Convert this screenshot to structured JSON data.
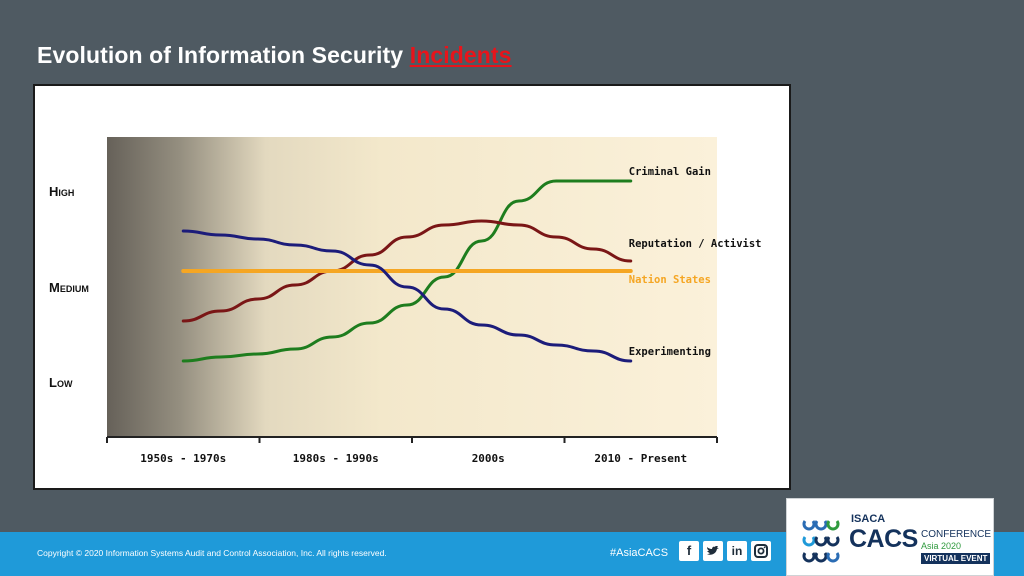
{
  "slide": {
    "title_main": "Evolution of Information Security",
    "title_highlight": "Incidents"
  },
  "chart_data": {
    "type": "line",
    "title": "",
    "xlabel": "",
    "ylabel": "",
    "categories": [
      "1950s - 1970s",
      "1980s - 1990s",
      "2000s",
      "2010 - Present"
    ],
    "y_levels": [
      "High",
      "Medium",
      "Low"
    ],
    "ylim": [
      0,
      10
    ],
    "grid": false,
    "x": [
      0,
      0.25,
      0.5,
      0.75,
      1.0,
      1.25,
      1.5,
      1.75,
      2.0,
      2.25,
      2.5,
      2.75,
      3.0
    ],
    "series": [
      {
        "name": "Criminal Gain",
        "color": "#1e7d1e",
        "values": [
          1.0,
          1.2,
          1.35,
          1.6,
          2.2,
          2.9,
          3.8,
          5.2,
          7.0,
          9.0,
          10.0,
          10.0,
          10.0
        ]
      },
      {
        "name": "Reputation / Activist",
        "color": "#7a1616",
        "values": [
          3.0,
          3.5,
          4.1,
          4.8,
          5.5,
          6.3,
          7.2,
          7.8,
          8.0,
          7.8,
          7.2,
          6.6,
          6.0
        ]
      },
      {
        "name": "Nation States",
        "color": "#f5a623",
        "values": [
          5.5,
          5.5,
          5.5,
          5.5,
          5.5,
          5.5,
          5.5,
          5.5,
          5.5,
          5.5,
          5.5,
          5.5,
          5.5
        ]
      },
      {
        "name": "Experimenting",
        "color": "#1c1c7a",
        "values": [
          7.5,
          7.3,
          7.1,
          6.8,
          6.5,
          5.8,
          4.7,
          3.6,
          2.8,
          2.3,
          1.8,
          1.5,
          1.0
        ]
      }
    ]
  },
  "footer": {
    "copyright": "Copyright © 2020 Information Systems Audit and Control Association, Inc. All rights reserved.",
    "hashtag": "#AsiaCACS",
    "social": [
      "f",
      "t",
      "in",
      "ig"
    ]
  },
  "logo": {
    "isaca": "ISACA",
    "cacs": "CACS",
    "conference": "CONFERENCE",
    "region": "Asia 2020",
    "badge": "VIRTUAL EVENT"
  }
}
